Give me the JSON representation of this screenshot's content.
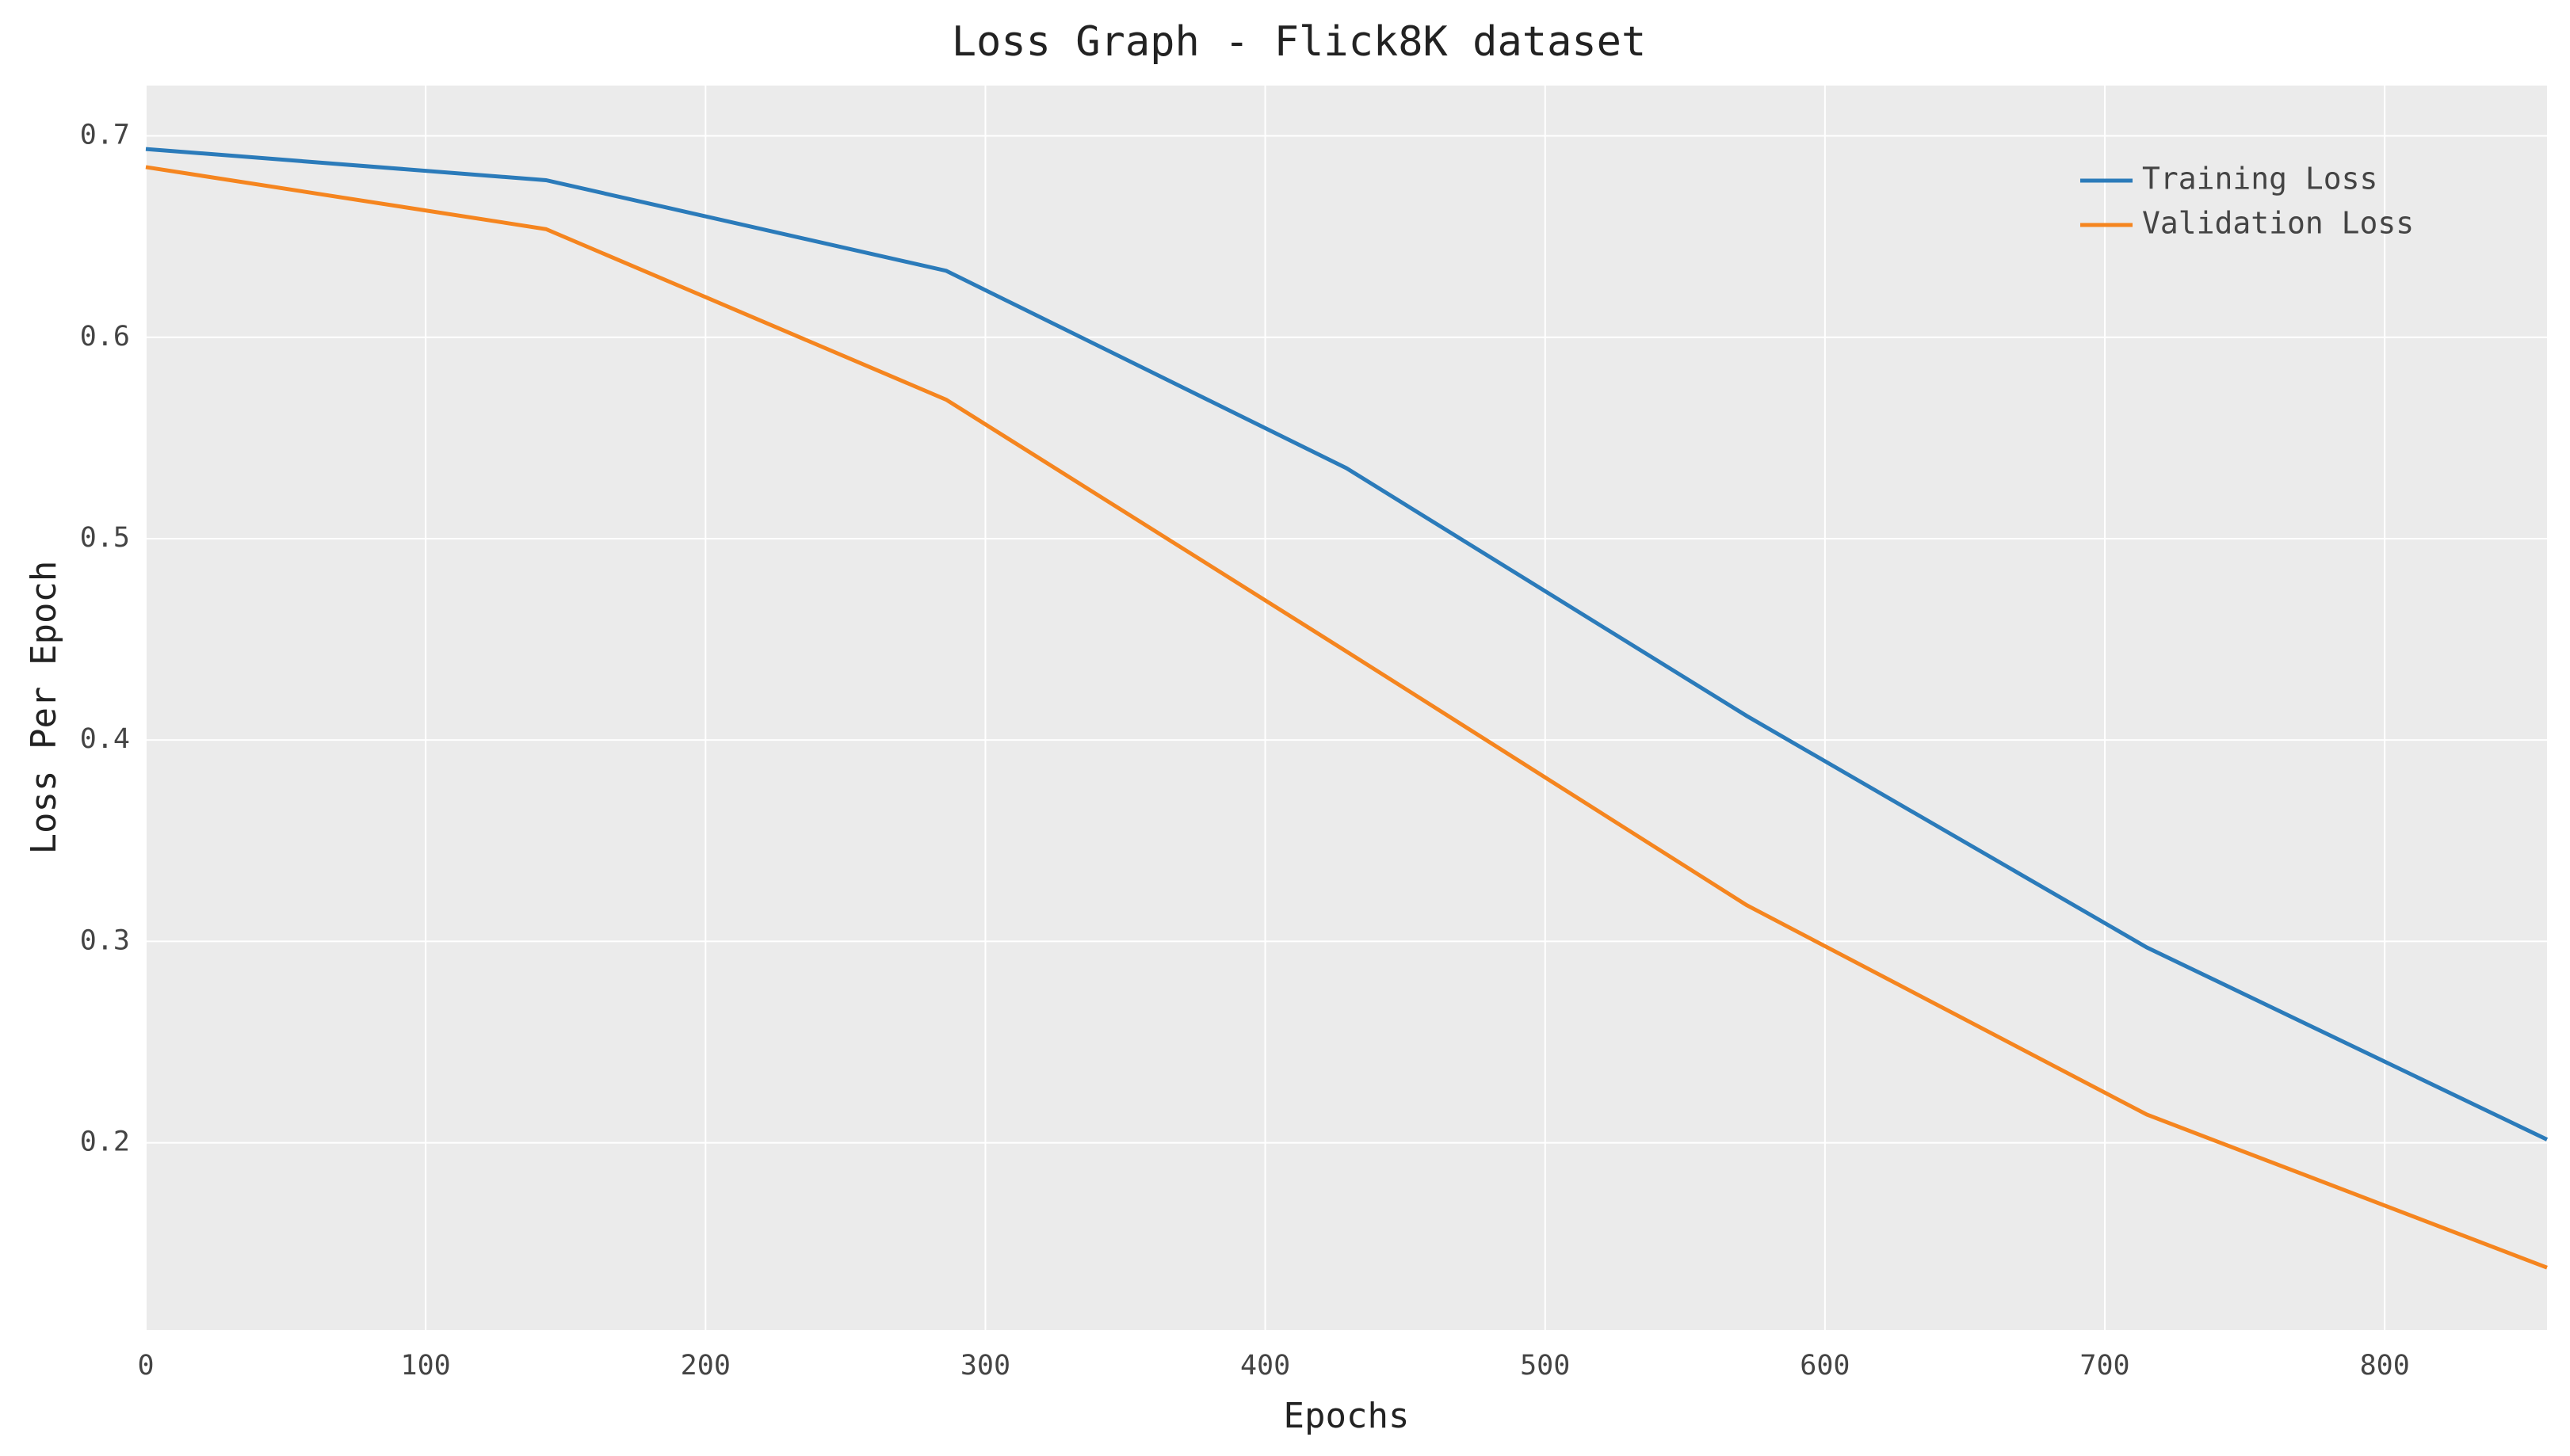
{
  "chart_data": {
    "type": "line",
    "title": "Loss Graph - Flick8K dataset",
    "x_label": "Epochs",
    "y_label": "Loss Per Epoch",
    "x": [
      0,
      143,
      286,
      429,
      572,
      715,
      858
    ],
    "series": [
      {
        "name": "Training Loss",
        "color": "#2b7bba",
        "values": [
          0.6935,
          0.678,
          0.633,
          0.535,
          0.412,
          0.297,
          0.2016
        ]
      },
      {
        "name": "Validation Loss",
        "color": "#f5851f",
        "values": [
          0.6845,
          0.6537,
          0.569,
          0.444,
          0.318,
          0.214,
          0.138
        ]
      }
    ],
    "xlim": [
      0,
      858
    ],
    "ylim": [
      0.107,
      0.725
    ],
    "xticks": [
      0,
      100,
      200,
      300,
      400,
      500,
      600,
      700,
      800
    ],
    "yticks": [
      0.2,
      0.3,
      0.4,
      0.5,
      0.6,
      0.7
    ],
    "grid": true,
    "legend": "upper right"
  }
}
